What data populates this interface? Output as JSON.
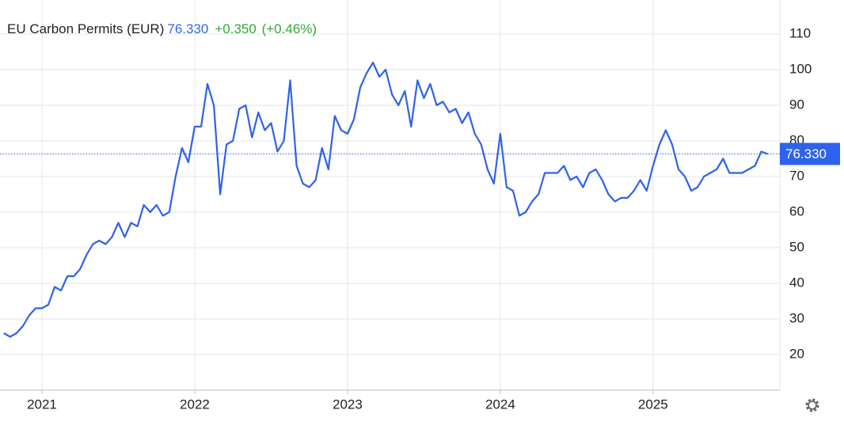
{
  "chart_data": {
    "type": "line",
    "title": "EU Carbon Permits (EUR)",
    "last": {
      "value": 76.33,
      "label": "76.330"
    },
    "change": "+0.350",
    "change_pct": "(+0.46%)",
    "categories": [
      null,
      null,
      null,
      null,
      null,
      null,
      "2021",
      null,
      null,
      null,
      null,
      null,
      null,
      null,
      null,
      null,
      null,
      null,
      null,
      null,
      null,
      null,
      null,
      null,
      null,
      null,
      null,
      null,
      null,
      null,
      "2022",
      null,
      null,
      null,
      null,
      null,
      null,
      null,
      null,
      null,
      null,
      null,
      null,
      null,
      null,
      null,
      null,
      null,
      null,
      null,
      null,
      null,
      null,
      null,
      "2023",
      null,
      null,
      null,
      null,
      null,
      null,
      null,
      null,
      null,
      null,
      null,
      null,
      null,
      null,
      null,
      null,
      null,
      null,
      null,
      null,
      null,
      null,
      null,
      "2024",
      null,
      null,
      null,
      null,
      null,
      null,
      null,
      null,
      null,
      null,
      null,
      null,
      null,
      null,
      null,
      null,
      null,
      null,
      null,
      null,
      null,
      null,
      null,
      "2025",
      null,
      null,
      null,
      null,
      null,
      null,
      null,
      null,
      null,
      null,
      null,
      null,
      null,
      null,
      null,
      null,
      null,
      null
    ],
    "series": [
      {
        "color": "#2f62ec",
        "values": [
          26,
          25,
          26,
          28,
          31,
          33,
          33,
          34,
          39,
          38,
          42,
          42,
          44,
          48,
          51,
          52,
          51,
          53,
          57,
          53,
          57,
          56,
          62,
          60,
          62,
          59,
          60,
          70,
          78,
          74,
          84,
          84,
          96,
          90,
          65,
          79,
          80,
          89,
          90,
          81,
          88,
          83,
          85,
          77,
          80,
          97,
          73,
          68,
          67,
          69,
          78,
          72,
          87,
          83,
          82,
          86,
          95,
          99,
          102,
          98,
          100,
          93,
          90,
          94,
          84,
          97,
          92,
          96,
          90,
          91,
          88,
          89,
          85,
          88,
          82,
          79,
          72,
          68,
          82,
          67,
          66,
          59,
          60,
          63,
          65,
          71,
          71,
          71,
          73,
          69,
          70,
          67,
          71,
          72,
          69,
          65,
          63,
          64,
          64,
          66,
          69,
          66,
          73,
          79,
          83,
          79,
          72,
          70,
          66,
          67,
          70,
          71,
          72,
          75,
          71,
          71,
          71,
          72,
          73,
          77,
          76.33
        ]
      }
    ],
    "ylim": [
      10,
      120
    ],
    "yticks": [
      20,
      30,
      40,
      50,
      60,
      70,
      80,
      90,
      100,
      110
    ],
    "grid": true
  }
}
